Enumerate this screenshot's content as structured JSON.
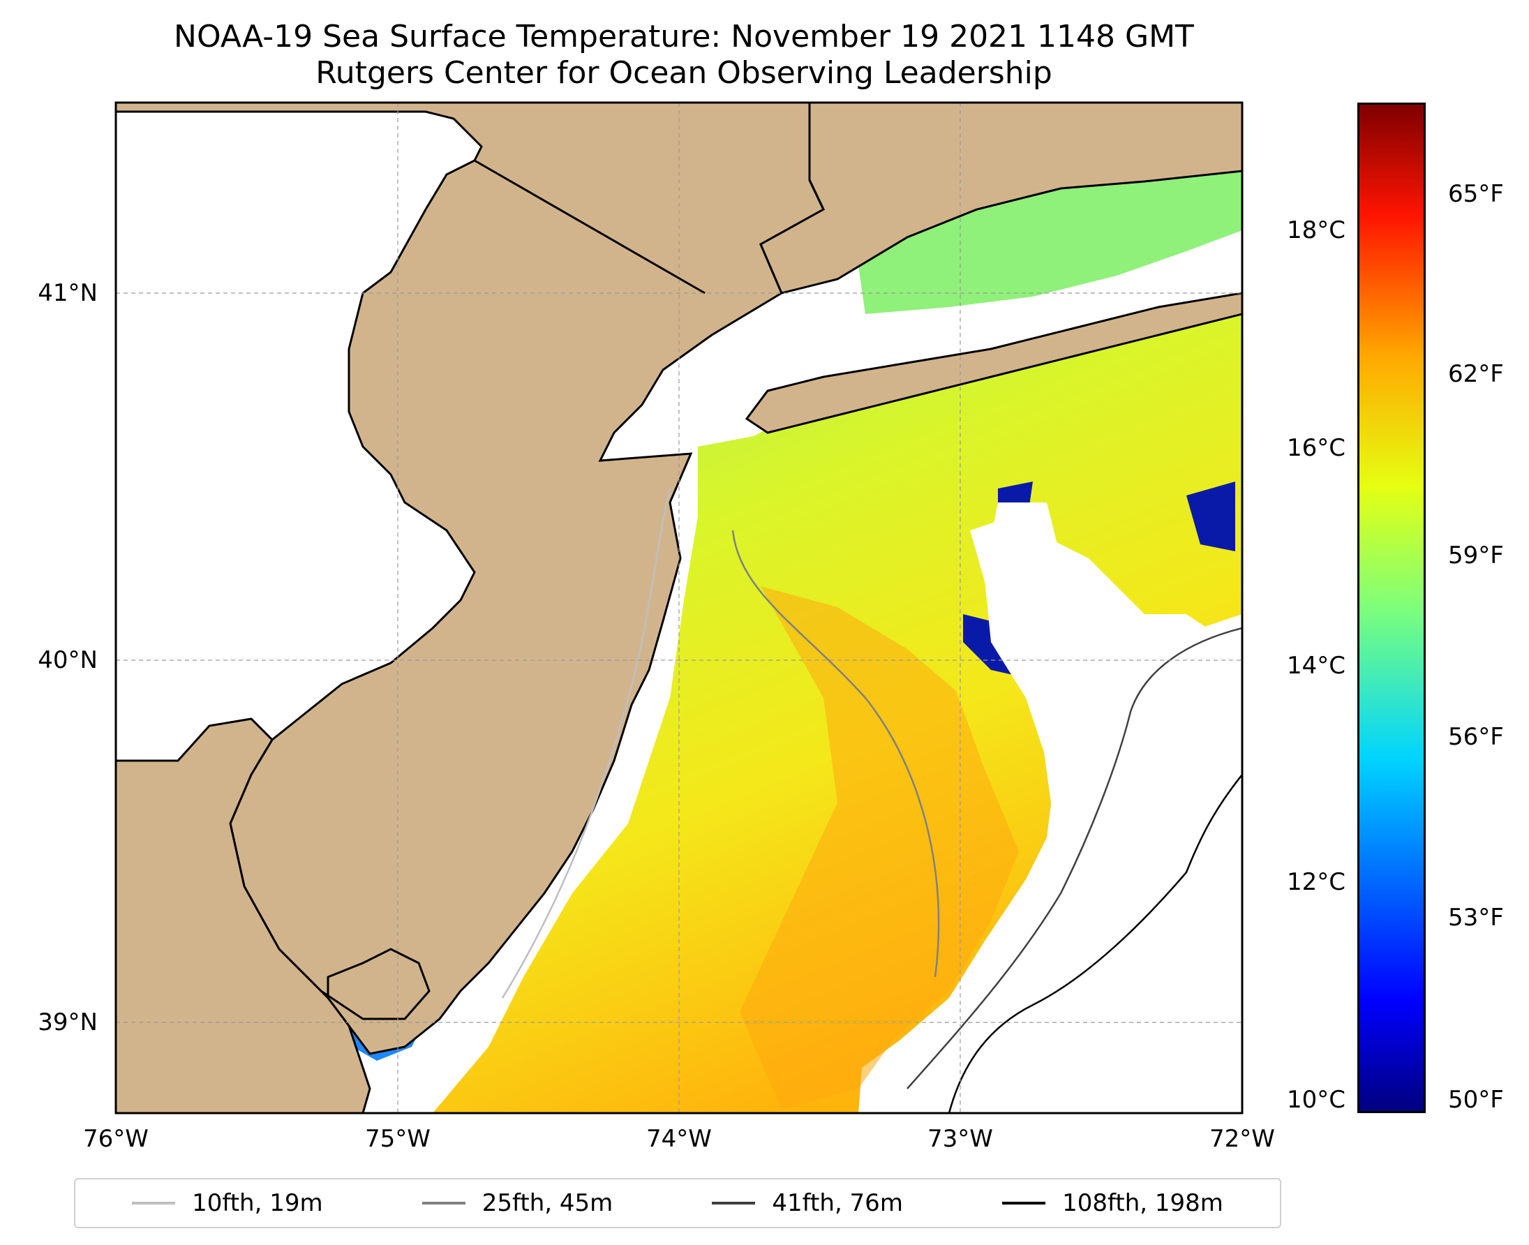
{
  "title": "NOAA-19 Sea Surface Temperature: November 19 2021 1148 GMT",
  "subtitle": "Rutgers Center for Ocean Observing Leadership",
  "map": {
    "lon_range": [
      -76,
      -72
    ],
    "lat_range": [
      38.8,
      41.5
    ],
    "x_ticks": [
      "76°W",
      "75°W",
      "74°W",
      "73°W",
      "72°W"
    ],
    "y_ticks": [
      "39°N",
      "40°N",
      "41°N"
    ],
    "land_color": "#d2b48c",
    "grid": true
  },
  "colorbar": {
    "celsius_ticks": [
      "10°C",
      "12°C",
      "14°C",
      "16°C",
      "18°C"
    ],
    "fahrenheit_ticks": [
      "50°F",
      "53°F",
      "56°F",
      "59°F",
      "62°F",
      "65°F"
    ],
    "range_c": [
      9.8,
      19.2
    ],
    "colormap": "jet"
  },
  "legend": [
    {
      "label": "10fth, 19m",
      "color": "#bfbfbf"
    },
    {
      "label": "25fth, 45m",
      "color": "#808080"
    },
    {
      "label": "41fth, 76m",
      "color": "#404040"
    },
    {
      "label": "108fth, 198m",
      "color": "#000000"
    }
  ]
}
